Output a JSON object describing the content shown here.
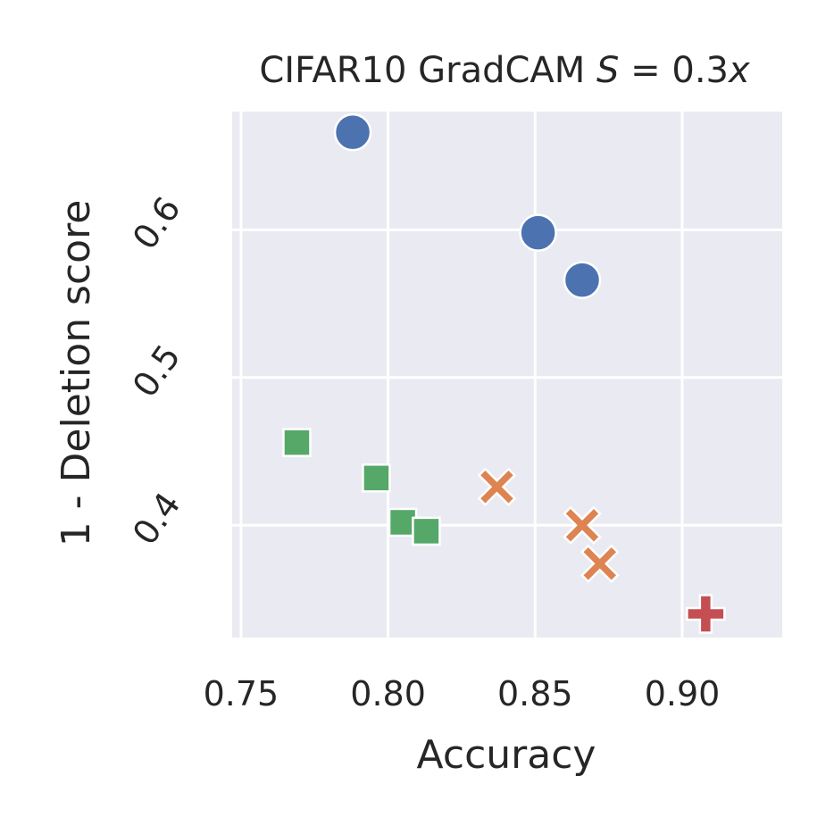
{
  "chart_data": {
    "type": "scatter",
    "title": "CIFAR10 GradCAM S = 0.3x",
    "title_parts": {
      "prefix": "CIFAR10 GradCAM ",
      "var": "S",
      "eq": " = 0.3",
      "suffix_var": "x"
    },
    "xlabel": "Accuracy",
    "ylabel": "1 - Deletion score",
    "xlim": [
      0.747,
      0.934
    ],
    "ylim": [
      0.324,
      0.68
    ],
    "xticks": [
      0.75,
      0.8,
      0.85,
      0.9
    ],
    "xtick_labels": [
      "0.75",
      "0.80",
      "0.85",
      "0.90"
    ],
    "yticks": [
      0.4,
      0.5,
      0.6
    ],
    "ytick_labels": [
      "0.4",
      "0.5",
      "0.6"
    ],
    "grid": true,
    "legend": "none",
    "background": "#eaeaf2",
    "series": [
      {
        "marker": "circle",
        "color": "#4c72b0",
        "points": [
          [
            0.788,
            0.666
          ],
          [
            0.851,
            0.598
          ],
          [
            0.866,
            0.566
          ]
        ]
      },
      {
        "marker": "x",
        "color": "#dd8452",
        "points": [
          [
            0.837,
            0.426
          ],
          [
            0.866,
            0.4
          ],
          [
            0.872,
            0.374
          ]
        ]
      },
      {
        "marker": "square",
        "color": "#55a868",
        "points": [
          [
            0.769,
            0.456
          ],
          [
            0.796,
            0.432
          ],
          [
            0.805,
            0.402
          ],
          [
            0.813,
            0.396
          ]
        ]
      },
      {
        "marker": "plus",
        "color": "#c44e52",
        "points": [
          [
            0.908,
            0.34
          ]
        ]
      }
    ]
  }
}
